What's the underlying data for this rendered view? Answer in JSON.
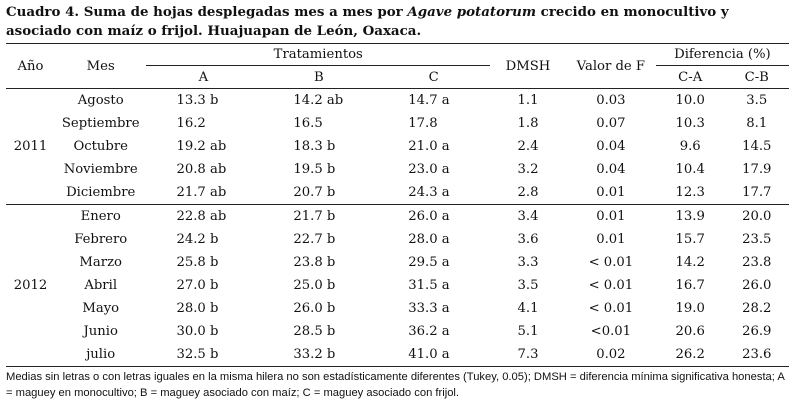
{
  "caption": {
    "part1": "Cuadro 4. Suma de hojas desplegadas mes a mes por ",
    "species": "Agave potatorum",
    "part2": " crecido en monocultivo y asociado con maíz o frijol. Huajuapan de León, Oaxaca."
  },
  "headers": {
    "year": "Año",
    "month": "Mes",
    "treatments": "Tratamientos",
    "a": "A",
    "b": "B",
    "c": "C",
    "dmsh": "DMSH",
    "f": "Valor de F",
    "difference": "Diferencia (%)",
    "ca": "C-A",
    "cb": "C-B"
  },
  "groups": [
    {
      "year": "2011",
      "rows": [
        {
          "mes": "Agosto",
          "a": "13.3 b",
          "b": "14.2 ab",
          "c": "14.7 a",
          "dmsh": "1.1",
          "f": "0.03",
          "ca": "10.0",
          "cb": "3.5"
        },
        {
          "mes": "Septiembre",
          "a": "16.2",
          "b": "16.5",
          "c": "17.8",
          "dmsh": "1.8",
          "f": "0.07",
          "ca": "10.3",
          "cb": "8.1"
        },
        {
          "mes": "Octubre",
          "a": "19.2 ab",
          "b": "18.3 b",
          "c": "21.0 a",
          "dmsh": "2.4",
          "f": "0.04",
          "ca": "9.6",
          "cb": "14.5"
        },
        {
          "mes": "Noviembre",
          "a": "20.8 ab",
          "b": "19.5 b",
          "c": "23.0 a",
          "dmsh": "3.2",
          "f": "0.04",
          "ca": "10.4",
          "cb": "17.9"
        },
        {
          "mes": "Diciembre",
          "a": "21.7 ab",
          "b": "20.7 b",
          "c": "24.3 a",
          "dmsh": "2.8",
          "f": "0.01",
          "ca": "12.3",
          "cb": "17.7"
        }
      ]
    },
    {
      "year": "2012",
      "rows": [
        {
          "mes": "Enero",
          "a": "22.8 ab",
          "b": "21.7 b",
          "c": "26.0 a",
          "dmsh": "3.4",
          "f": "0.01",
          "ca": "13.9",
          "cb": "20.0"
        },
        {
          "mes": "Febrero",
          "a": "24.2 b",
          "b": "22.7 b",
          "c": "28.0 a",
          "dmsh": "3.6",
          "f": "0.01",
          "ca": "15.7",
          "cb": "23.5"
        },
        {
          "mes": "Marzo",
          "a": "25.8 b",
          "b": "23.8 b",
          "c": "29.5 a",
          "dmsh": "3.3",
          "f": "< 0.01",
          "ca": "14.2",
          "cb": "23.8"
        },
        {
          "mes": "Abril",
          "a": "27.0 b",
          "b": "25.0 b",
          "c": "31.5 a",
          "dmsh": "3.5",
          "f": "< 0.01",
          "ca": "16.7",
          "cb": "26.0"
        },
        {
          "mes": "Mayo",
          "a": "28.0 b",
          "b": "26.0 b",
          "c": "33.3 a",
          "dmsh": "4.1",
          "f": "< 0.01",
          "ca": "19.0",
          "cb": "28.2"
        },
        {
          "mes": "Junio",
          "a": "30.0 b",
          "b": "28.5 b",
          "c": "36.2 a",
          "dmsh": "5.1",
          "f": "<0.01",
          "ca": "20.6",
          "cb": "26.9"
        },
        {
          "mes": "julio",
          "a": "32.5 b",
          "b": "33.2 b",
          "c": "41.0 a",
          "dmsh": "7.3",
          "f": "0.02",
          "ca": "26.2",
          "cb": "23.6"
        }
      ]
    }
  ],
  "footnote": "Medias sin letras o con letras iguales en la misma hilera no son estadísticamente diferentes (Tukey, 0.05); DMSH = diferencia mínima significativa honesta; A = maguey en monocultivo; B = maguey asociado con maíz; C = maguey asociado con frijol."
}
